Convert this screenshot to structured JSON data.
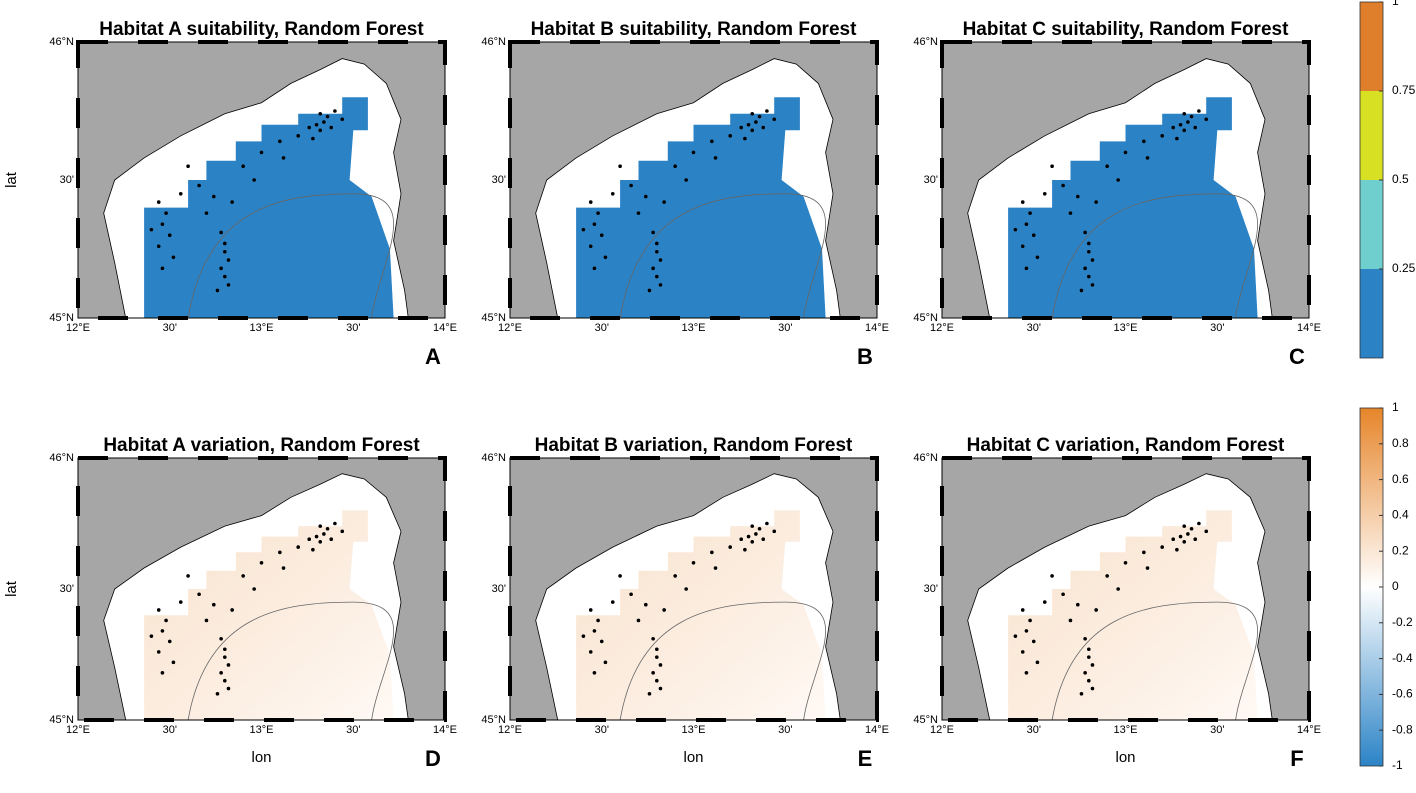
{
  "panels": [
    {
      "title": "Habitat A suitability, Random Forest",
      "letter": "A",
      "kind": "suitability"
    },
    {
      "title": "Habitat B suitability, Random Forest",
      "letter": "B",
      "kind": "suitability"
    },
    {
      "title": "Habitat C suitability, Random Forest",
      "letter": "C",
      "kind": "suitability"
    },
    {
      "title": "Habitat A variation, Random Forest",
      "letter": "D",
      "kind": "variation"
    },
    {
      "title": "Habitat B variation, Random Forest",
      "letter": "E",
      "kind": "variation"
    },
    {
      "title": "Habitat C variation, Random Forest",
      "letter": "F",
      "kind": "variation"
    }
  ],
  "lat_ticks": [
    "46°N",
    "30'",
    "45°N"
  ],
  "lon_ticks": [
    "12°E",
    "30'",
    "13°E",
    "30'",
    "14°E"
  ],
  "y_label": "lat",
  "x_label": "lon",
  "colorbars": [
    {
      "clim": [
        0,
        1
      ],
      "ticks": [
        0.25,
        0.5,
        0.75,
        1
      ],
      "colors": [
        "#2b83c6",
        "#6fcfcf",
        "#d8e023",
        "#e07f2b"
      ]
    },
    {
      "clim": [
        -1,
        1
      ],
      "ticks": [
        -1,
        -0.8,
        -0.6,
        -0.4,
        -0.2,
        0,
        0.2,
        0.4,
        0.6,
        0.8,
        1
      ],
      "colors": [
        "#2b83c6",
        "#ffffff",
        "#e6852a"
      ]
    }
  ]
}
